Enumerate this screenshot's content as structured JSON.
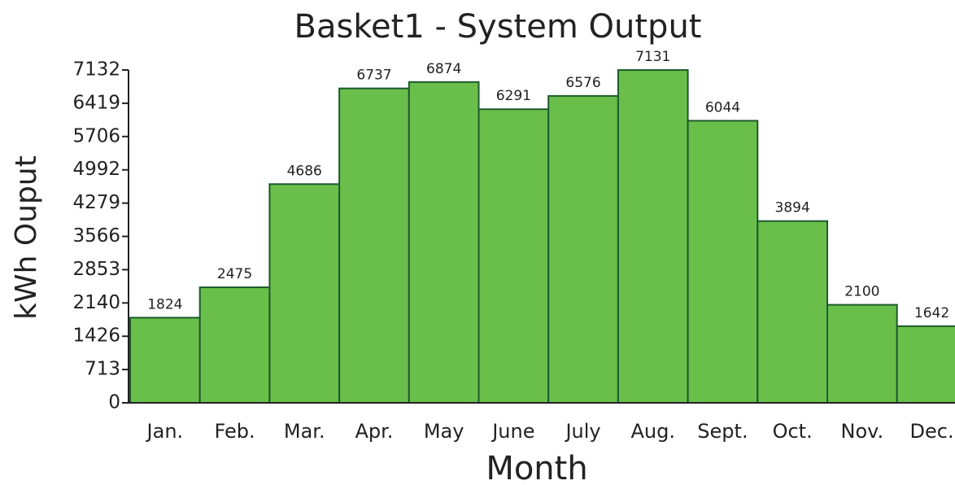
{
  "chart_data": {
    "type": "bar",
    "title": "Basket1 - System Output",
    "xlabel": "Month",
    "ylabel": "kWh Ouput",
    "categories": [
      "Jan.",
      "Feb.",
      "Mar.",
      "Apr.",
      "May",
      "June",
      "July",
      "Aug.",
      "Sept.",
      "Oct.",
      "Nov.",
      "Dec."
    ],
    "values": [
      1824,
      2475,
      4686,
      6737,
      6874,
      6291,
      6576,
      7131,
      6044,
      3894,
      2100,
      1642
    ],
    "color": "#6abf4b",
    "edgecolor": "#1d5a2c",
    "ylim": [
      0,
      7132
    ],
    "yticks": [
      0,
      713,
      1426,
      2140,
      2853,
      3566,
      4279,
      4992,
      5706,
      6419,
      7132
    ],
    "grid": false
  }
}
